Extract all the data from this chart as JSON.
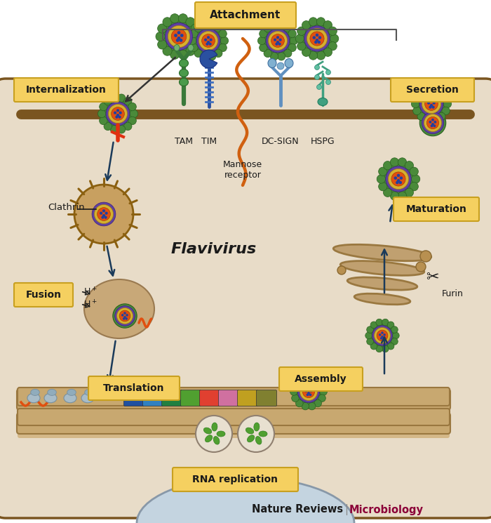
{
  "bg_white": "#FFFFFF",
  "bg_cell": "#E8DCC8",
  "bg_er": "#C8B090",
  "bg_nucleus": "#B8C8D8",
  "cell_border": "#7A5520",
  "title_box_fc": "#F5D060",
  "title_box_ec": "#C8A020",
  "label_color": "#1A1A1A",
  "arrow_color": "#1A3A5A",
  "virus_green": "#4A8A3A",
  "virus_green_dark": "#2A6020",
  "virus_purple": "#6040A0",
  "virus_yellow": "#D4B030",
  "virus_orange": "#E05010",
  "virus_blue": "#2040A0",
  "clathrin_brown": "#8B6010",
  "clathrin_bg": "#B89050",
  "endo_bg": "#C8A878",
  "golgi_color": "#C0A070",
  "golgi_ec": "#9A7840",
  "nature_color": "#1A1A1A",
  "micro_color": "#8B0038",
  "labels": {
    "attachment": "Attachment",
    "internalization": "Internalization",
    "fusion": "Fusion",
    "translation": "Translation",
    "rna": "RNA replication",
    "assembly": "Assembly",
    "maturation": "Maturation",
    "secretion": "Secretion",
    "flavivirus": "Flavivirus",
    "clathrin": "Clathrin",
    "furin": "Furin",
    "hspg": "HSPG",
    "tam": "TAM",
    "tim": "TIM",
    "mannose": "Mannose\nreceptor",
    "dcsign": "DC-SIGN",
    "hplus": "H",
    "nature": "Nature Reviews",
    "micro": "Microbiology"
  }
}
